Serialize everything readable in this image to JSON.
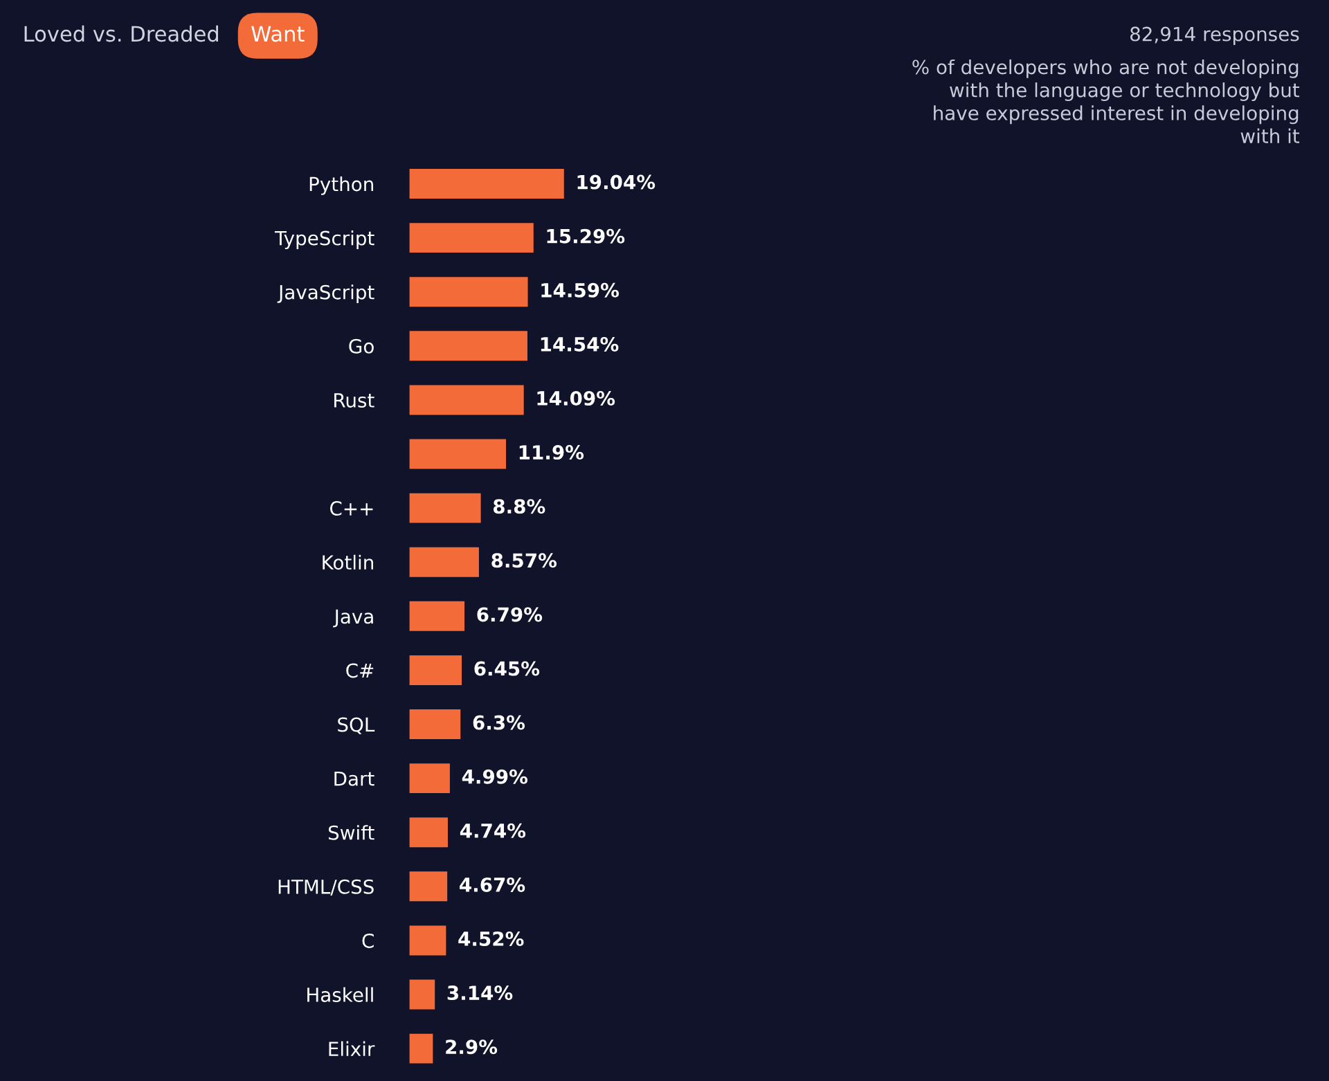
{
  "chart_data": {
    "type": "bar",
    "orientation": "horizontal",
    "categories": [
      "Python",
      "TypeScript",
      "JavaScript",
      "Go",
      "Rust",
      null,
      "C++",
      "Kotlin",
      "Java",
      "C#",
      "SQL",
      "Dart",
      "Swift",
      "HTML/CSS",
      "C",
      "Haskell",
      "Elixir"
    ],
    "values": [
      19.04,
      15.29,
      14.59,
      14.54,
      14.09,
      11.9,
      8.8,
      8.57,
      6.79,
      6.45,
      6.3,
      4.99,
      4.74,
      4.67,
      4.52,
      3.14,
      2.9
    ],
    "value_labels": [
      "19.04%",
      "15.29%",
      "14.59%",
      "14.54%",
      "14.09%",
      "11.9%",
      "8.8%",
      "8.57%",
      "6.79%",
      "6.45%",
      "6.3%",
      "4.99%",
      "4.74%",
      "4.67%",
      "4.52%",
      "3.14%",
      "2.9%"
    ],
    "color": "#f26b38",
    "tick_labels": "y",
    "annotations": [
      "Loved vs. Dreaded",
      "Want",
      "82,914 responses",
      "% of developers who are not developing\nwith the language or technology but\nhave expressed interest in developing\nwith it"
    ]
  }
}
